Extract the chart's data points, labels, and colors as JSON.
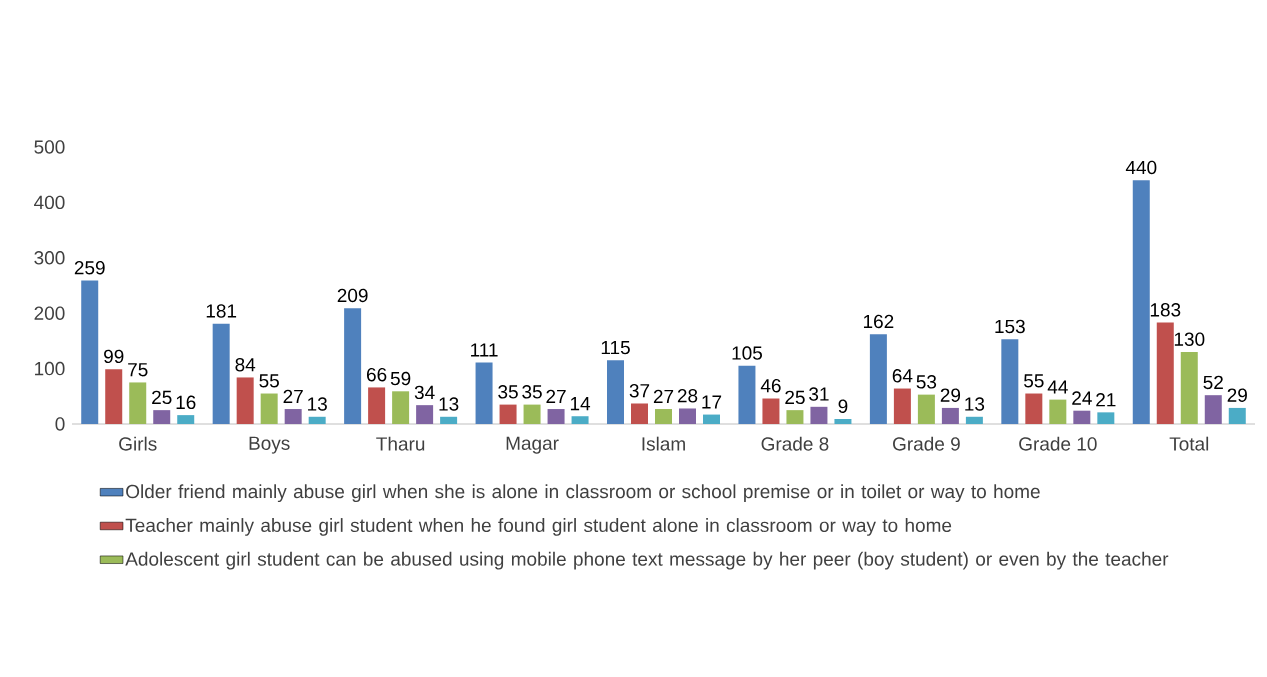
{
  "chart_data": {
    "type": "bar",
    "categories": [
      "Girls",
      "Boys",
      "Tharu",
      "Magar",
      "Islam",
      "Grade 8",
      "Grade 9",
      "Grade 10",
      "Total"
    ],
    "series": [
      {
        "name": "Older friend mainly abuse girl when she is alone in classroom or school premise or in toilet or way to home",
        "color": "#4f81bd",
        "values": [
          259,
          181,
          209,
          111,
          115,
          105,
          162,
          153,
          440
        ]
      },
      {
        "name": "Teacher mainly abuse girl student when he found girl student alone in classroom or way to home",
        "color": "#c0504d",
        "values": [
          99,
          84,
          66,
          35,
          37,
          46,
          64,
          55,
          183
        ]
      },
      {
        "name": "Adolescent girl student can be abused using mobile phone text message by her peer (boy student) or even by the teacher",
        "color": "#9bbb59",
        "values": [
          75,
          55,
          59,
          35,
          27,
          25,
          53,
          44,
          130
        ]
      },
      {
        "color": "#8064a2",
        "values": [
          25,
          27,
          34,
          27,
          28,
          31,
          29,
          24,
          52
        ]
      },
      {
        "color": "#4bacc6",
        "values": [
          16,
          13,
          13,
          14,
          17,
          9,
          13,
          21,
          29
        ]
      }
    ],
    "ylim": [
      0,
      500
    ],
    "yticks": [
      0,
      100,
      200,
      300,
      400,
      500
    ],
    "data_labels": true,
    "legend": "bottom",
    "grid": false
  }
}
